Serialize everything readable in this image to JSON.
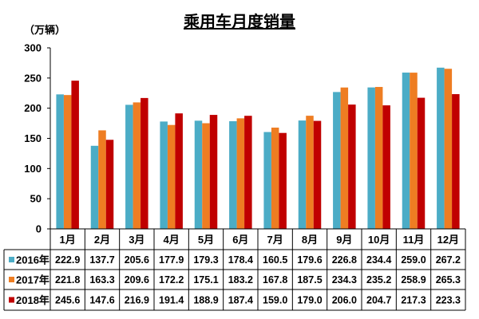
{
  "chart_data": {
    "type": "bar",
    "title": "乘用车月度销量",
    "ylabel": "（万辆）",
    "xlabel": "",
    "categories": [
      "1月",
      "2月",
      "3月",
      "4月",
      "5月",
      "6月",
      "7月",
      "8月",
      "9月",
      "10月",
      "11月",
      "12月"
    ],
    "ylim": [
      0,
      300
    ],
    "yticks": [
      0,
      50,
      100,
      150,
      200,
      250,
      300
    ],
    "grid": false,
    "legend": "bottom",
    "data_table": true,
    "series": [
      {
        "name": "2016年",
        "color": "#4BACC6",
        "values": [
          222.9,
          137.7,
          205.6,
          177.9,
          179.3,
          178.4,
          160.5,
          179.6,
          226.8,
          234.4,
          259.0,
          267.2
        ]
      },
      {
        "name": "2017年",
        "color": "#EE7D22",
        "values": [
          221.8,
          163.3,
          209.6,
          172.2,
          175.1,
          183.2,
          167.8,
          187.5,
          234.3,
          235.2,
          258.9,
          265.3
        ]
      },
      {
        "name": "2018年",
        "color": "#C00000",
        "values": [
          245.6,
          147.6,
          216.9,
          191.4,
          188.9,
          187.4,
          159.0,
          179.0,
          206.0,
          204.7,
          217.3,
          223.3
        ]
      }
    ]
  }
}
